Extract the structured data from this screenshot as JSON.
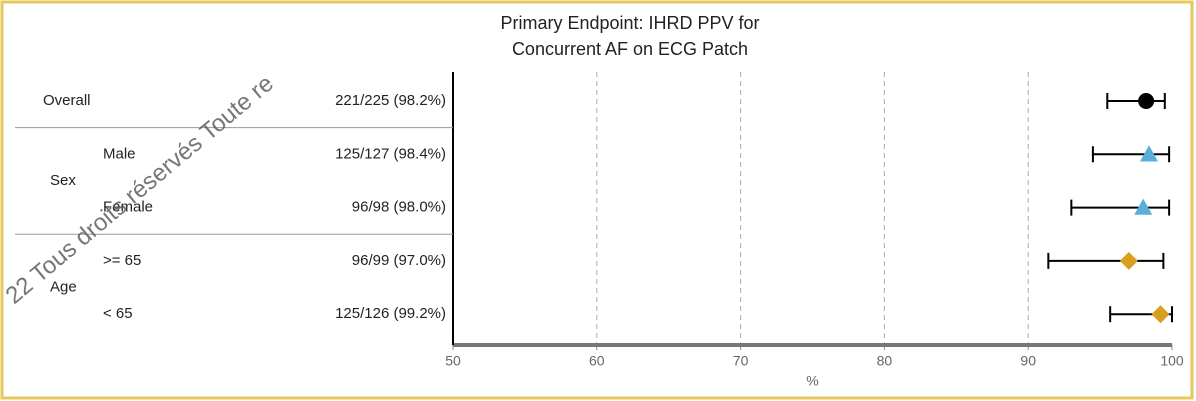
{
  "chart_data": {
    "type": "forest",
    "title": [
      "Primary Endpoint: IHRD PPV for",
      "Concurrent AF on ECG Patch"
    ],
    "x_label": "%",
    "xlim": [
      50,
      100
    ],
    "xticks": [
      50,
      60,
      70,
      80,
      90,
      100
    ],
    "grid": true,
    "watermark": "22 Tous droits réservés Toute re",
    "groups": [
      {
        "label": "Overall",
        "marker": "circle",
        "color": "#000000",
        "rows": [
          {
            "value_label": "221/225 (98.2%)",
            "value": 98.2,
            "lower": 95.5,
            "upper": 99.5
          }
        ]
      },
      {
        "label": "Sex",
        "marker": "triangle",
        "color": "#5aaed8",
        "rows": [
          {
            "label": "Male",
            "value_label": "125/127 (98.4%)",
            "value": 98.4,
            "lower": 94.5,
            "upper": 99.8
          },
          {
            "label": "Female",
            "value_label": "96/98 (98.0%)",
            "value": 98.0,
            "lower": 93.0,
            "upper": 99.8
          }
        ]
      },
      {
        "label": "Age",
        "marker": "diamond",
        "color": "#d9a020",
        "rows": [
          {
            "label": ">= 65",
            "value_label": "96/99 (97.0%)",
            "value": 97.0,
            "lower": 91.4,
            "upper": 99.4
          },
          {
            "label": "< 65",
            "value_label": "125/126 (99.2%)",
            "value": 99.2,
            "lower": 95.7,
            "upper": 100
          }
        ]
      }
    ]
  }
}
